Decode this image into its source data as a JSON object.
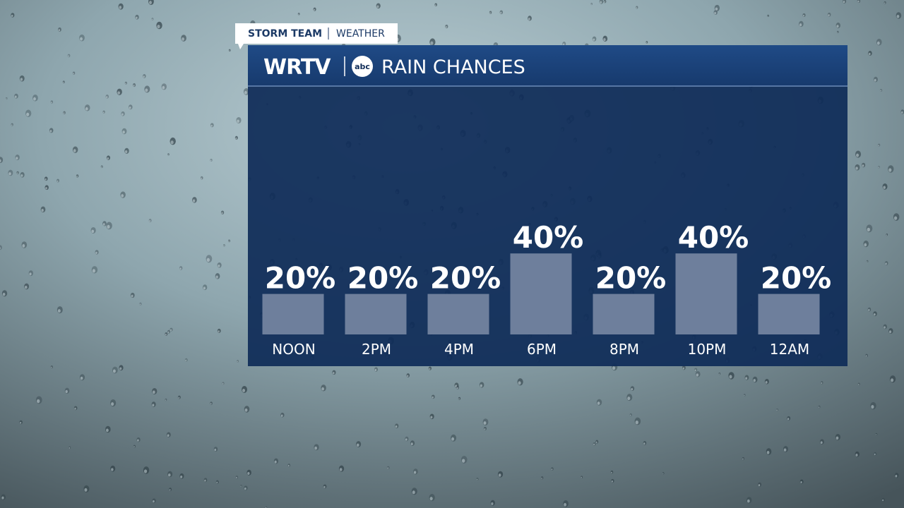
{
  "branding": {
    "tag": "STORM TEAM",
    "section": "WEATHER",
    "station": "WRTV",
    "network": "abc"
  },
  "chart_data": {
    "type": "bar",
    "title": "RAIN CHANCES",
    "categories": [
      "NOON",
      "2PM",
      "4PM",
      "6PM",
      "8PM",
      "10PM",
      "12AM"
    ],
    "values": [
      20,
      20,
      20,
      40,
      20,
      40,
      20
    ],
    "value_labels": [
      "20%",
      "20%",
      "20%",
      "40%",
      "20%",
      "40%",
      "20%"
    ],
    "color": "#6e7f9c"
  }
}
